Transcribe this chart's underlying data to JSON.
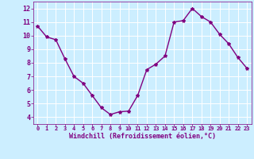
{
  "x": [
    0,
    1,
    2,
    3,
    4,
    5,
    6,
    7,
    8,
    9,
    10,
    11,
    12,
    13,
    14,
    15,
    16,
    17,
    18,
    19,
    20,
    21,
    22,
    23
  ],
  "y": [
    10.7,
    9.9,
    9.7,
    8.3,
    7.0,
    6.5,
    5.6,
    4.7,
    4.2,
    4.4,
    4.45,
    5.6,
    7.5,
    7.9,
    8.5,
    11.0,
    11.1,
    12.0,
    11.4,
    11.0,
    10.1,
    9.4,
    8.4,
    7.6
  ],
  "line_color": "#800080",
  "marker": "*",
  "marker_size": 3,
  "bg_color": "#cceeff",
  "grid_color": "#ffffff",
  "xlabel": "Windchill (Refroidissement éolien,°C)",
  "xlabel_color": "#800080",
  "tick_color": "#800080",
  "ylim": [
    3.5,
    12.5
  ],
  "xlim": [
    -0.5,
    23.5
  ],
  "yticks": [
    4,
    5,
    6,
    7,
    8,
    9,
    10,
    11,
    12
  ],
  "xticks": [
    0,
    1,
    2,
    3,
    4,
    5,
    6,
    7,
    8,
    9,
    10,
    11,
    12,
    13,
    14,
    15,
    16,
    17,
    18,
    19,
    20,
    21,
    22,
    23
  ],
  "spine_color": "#800080",
  "linewidth": 1.0,
  "figsize": [
    3.2,
    2.0
  ],
  "dpi": 100
}
